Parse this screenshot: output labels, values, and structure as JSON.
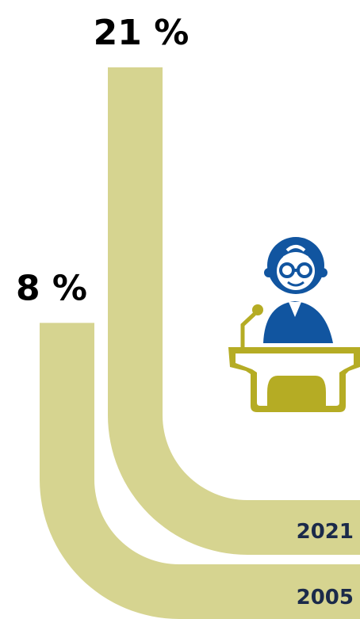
{
  "chart_data": {
    "type": "bar",
    "categories": [
      "2005",
      "2021"
    ],
    "values": [
      8,
      21
    ],
    "value_labels": [
      "8 %",
      "21 %"
    ],
    "unit": "%",
    "colors": {
      "band": "#d6d490",
      "year_text": "#1b2a4a",
      "value_text": "#000000"
    }
  },
  "illustration": {
    "icon": "speaker-at-podium-icon",
    "colors": {
      "person": "#1155a0",
      "podium": "#b5ac24"
    }
  }
}
